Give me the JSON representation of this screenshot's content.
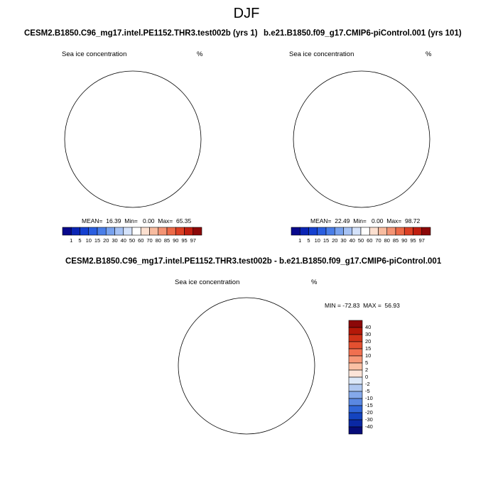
{
  "figure_title": "DJF",
  "panel_left": {
    "case_title": "CESM2.B1850.C96_mg17.intel.PE1152.THR3.test002b (yrs 1)",
    "variable_label": "Sea ice concentration",
    "units": "%",
    "stats": "MEAN=  16.39  Min=   0.00  Max=  65.35"
  },
  "panel_right": {
    "case_title": "b.e21.B1850.f09_g17.CMIP6-piControl.001 (yrs 101)",
    "variable_label": "Sea ice concentration",
    "units": "%",
    "stats": "MEAN=  22.49  Min=   0.00  Max=  98.72"
  },
  "panel_diff": {
    "case_title": "CESM2.B1850.C96_mg17.intel.PE1152.THR3.test002b - b.e21.B1850.f09_g17.CMIP6-piControl.001",
    "variable_label": "Sea ice concentration",
    "units": "%",
    "stats": "MIN = -72.83  MAX =  56.93"
  },
  "colorbar_top": {
    "labels": [
      "1",
      "5",
      "10",
      "15",
      "20",
      "30",
      "40",
      "50",
      "60",
      "70",
      "80",
      "85",
      "90",
      "95",
      "97"
    ],
    "colors": [
      "#08088c",
      "#0a24b4",
      "#1440d0",
      "#2a5ee0",
      "#4a7ee8",
      "#78a2ee",
      "#a6c2f4",
      "#d4e2fa",
      "#ffffff",
      "#fce0d0",
      "#f8bca0",
      "#f49474",
      "#ec6a48",
      "#dc4024",
      "#c01e10",
      "#8c0808"
    ]
  },
  "colorbar_diff": {
    "labels": [
      "40",
      "30",
      "20",
      "15",
      "10",
      "5",
      "2",
      "0",
      "-2",
      "-5",
      "-10",
      "-15",
      "-20",
      "-30",
      "-40"
    ],
    "colors": [
      "#8c0808",
      "#b41808",
      "#d03218",
      "#e45030",
      "#f07050",
      "#f69878",
      "#fac0a4",
      "#fce4d8",
      "#dce8f8",
      "#b0c8f0",
      "#84a8ea",
      "#5a88e2",
      "#3066d8",
      "#1444c0",
      "#0a28a4",
      "#060c78"
    ]
  }
}
